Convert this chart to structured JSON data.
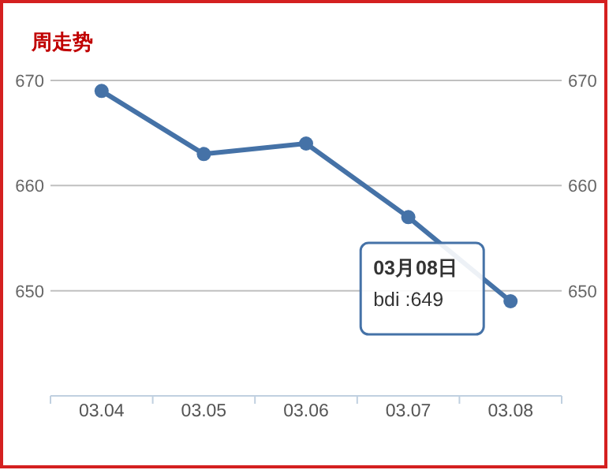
{
  "chart_data": {
    "type": "line",
    "title": "周走势",
    "categories": [
      "03.04",
      "03.05",
      "03.06",
      "03.07",
      "03.08"
    ],
    "series": [
      {
        "color": "#4572a7",
        "values": [
          669,
          663,
          664,
          657,
          649
        ]
      }
    ],
    "ylim": [
      640,
      670
    ],
    "yticks": [
      {
        "value": 640,
        "label": null
      },
      650,
      660,
      670
    ],
    "y2lim": [
      640,
      670
    ],
    "y2ticks": [
      650,
      660,
      670
    ],
    "grid": "y",
    "marker": "circle",
    "line_style": "solid",
    "annotations": [
      "03月08日",
      "bdi :649"
    ]
  }
}
